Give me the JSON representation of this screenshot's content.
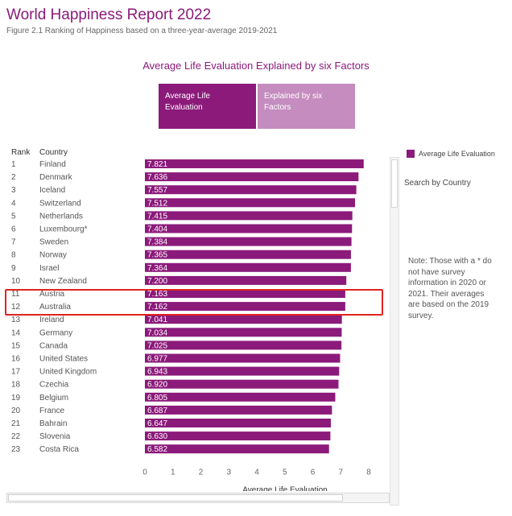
{
  "header": {
    "title": "World Happiness Report 2022",
    "subtitle": "Figure 2.1 Ranking of Happiness based on a three-year-average 2019-2021"
  },
  "section_title": "Average Life Evaluation Explained by six Factors",
  "toggles": [
    {
      "label": "Average Life Evaluation",
      "active": true
    },
    {
      "label": "Explained by six Factors",
      "active": false
    }
  ],
  "table_headers": {
    "rank": "Rank",
    "country": "Country"
  },
  "legend": {
    "label": "Average Life Evaluation",
    "color": "#8b1a7a"
  },
  "search_label": "Search by Country",
  "note": "Note: Those with a * do not have survey information in 2020 or 2021. Their averages are based on the 2019 survey.",
  "colors": {
    "bar": "#8b1a7a",
    "highlight": "#e0241f"
  },
  "chart_data": {
    "type": "bar",
    "orientation": "horizontal",
    "xlabel": "Average Life Evaluation",
    "xlim": [
      0,
      8
    ],
    "xticks": [
      0,
      1,
      2,
      3,
      4,
      5,
      6,
      7,
      8
    ],
    "ranks": [
      1,
      2,
      3,
      4,
      5,
      6,
      7,
      8,
      9,
      10,
      11,
      12,
      13,
      14,
      15,
      16,
      17,
      18,
      19,
      20,
      21,
      22,
      23
    ],
    "categories": [
      "Finland",
      "Denmark",
      "Iceland",
      "Switzerland",
      "Netherlands",
      "Luxembourg*",
      "Sweden",
      "Norway",
      "Israel",
      "New Zealand",
      "Austria",
      "Australia",
      "Ireland",
      "Germany",
      "Canada",
      "United States",
      "United Kingdom",
      "Czechia",
      "Belgium",
      "France",
      "Bahrain",
      "Slovenia",
      "Costa Rica"
    ],
    "values": [
      7.821,
      7.636,
      7.557,
      7.512,
      7.415,
      7.404,
      7.384,
      7.365,
      7.364,
      7.2,
      7.163,
      7.162,
      7.041,
      7.034,
      7.025,
      6.977,
      6.943,
      6.92,
      6.805,
      6.687,
      6.647,
      6.63,
      6.582
    ],
    "value_labels": [
      "7.821",
      "7.636",
      "7.557",
      "7.512",
      "7.415",
      "7.404",
      "7.384",
      "7.365",
      "7.364",
      "7.200",
      "7.163",
      "7.162",
      "7.041",
      "7.034",
      "7.025",
      "6.977",
      "6.943",
      "6.920",
      "6.805",
      "6.687",
      "6.647",
      "6.630",
      "6.582"
    ],
    "highlighted_categories": [
      "Austria",
      "Australia"
    ]
  }
}
